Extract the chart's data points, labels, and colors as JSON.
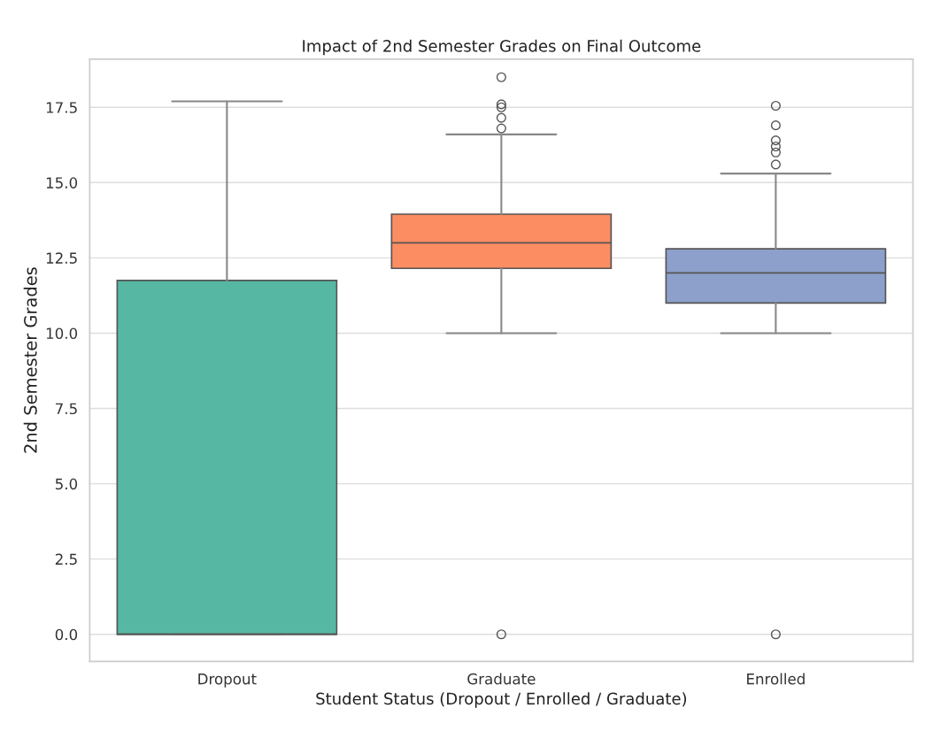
{
  "chart_data": {
    "type": "box",
    "title": "Impact of 2nd Semester Grades on Final Outcome",
    "xlabel": "Student Status (Dropout / Enrolled / Graduate)",
    "ylabel": "2nd Semester Grades",
    "categories": [
      "Dropout",
      "Graduate",
      "Enrolled"
    ],
    "colors": [
      "#56b8a2",
      "#fc8d62",
      "#8da0cb"
    ],
    "boxes": [
      {
        "low": 0,
        "q1": 0,
        "median": 0,
        "q3": 11.75,
        "high": 17.7
      },
      {
        "low": 10.0,
        "q1": 12.15,
        "median": 13.0,
        "q3": 13.95,
        "high": 16.6,
        "outliers": [
          0,
          16.8,
          17.15,
          17.5,
          17.6,
          18.5
        ]
      },
      {
        "low": 10.0,
        "q1": 11.0,
        "median": 12.0,
        "q3": 12.8,
        "high": 15.3,
        "outliers": [
          0,
          15.6,
          16.0,
          16.2,
          16.4,
          16.9,
          17.55
        ]
      }
    ],
    "ylim": [
      -0.9,
      19.1
    ],
    "yticks": [
      {
        "value": 0,
        "label": "0.0"
      },
      {
        "value": 2.5,
        "label": "2.5"
      },
      {
        "value": 5,
        "label": "5.0"
      },
      {
        "value": 7.5,
        "label": "7.5"
      },
      {
        "value": 10,
        "label": "10.0"
      },
      {
        "value": 12.5,
        "label": "12.5"
      },
      {
        "value": 15,
        "label": "15.0"
      },
      {
        "value": 17.5,
        "label": "17.5"
      }
    ],
    "grid": "y"
  }
}
